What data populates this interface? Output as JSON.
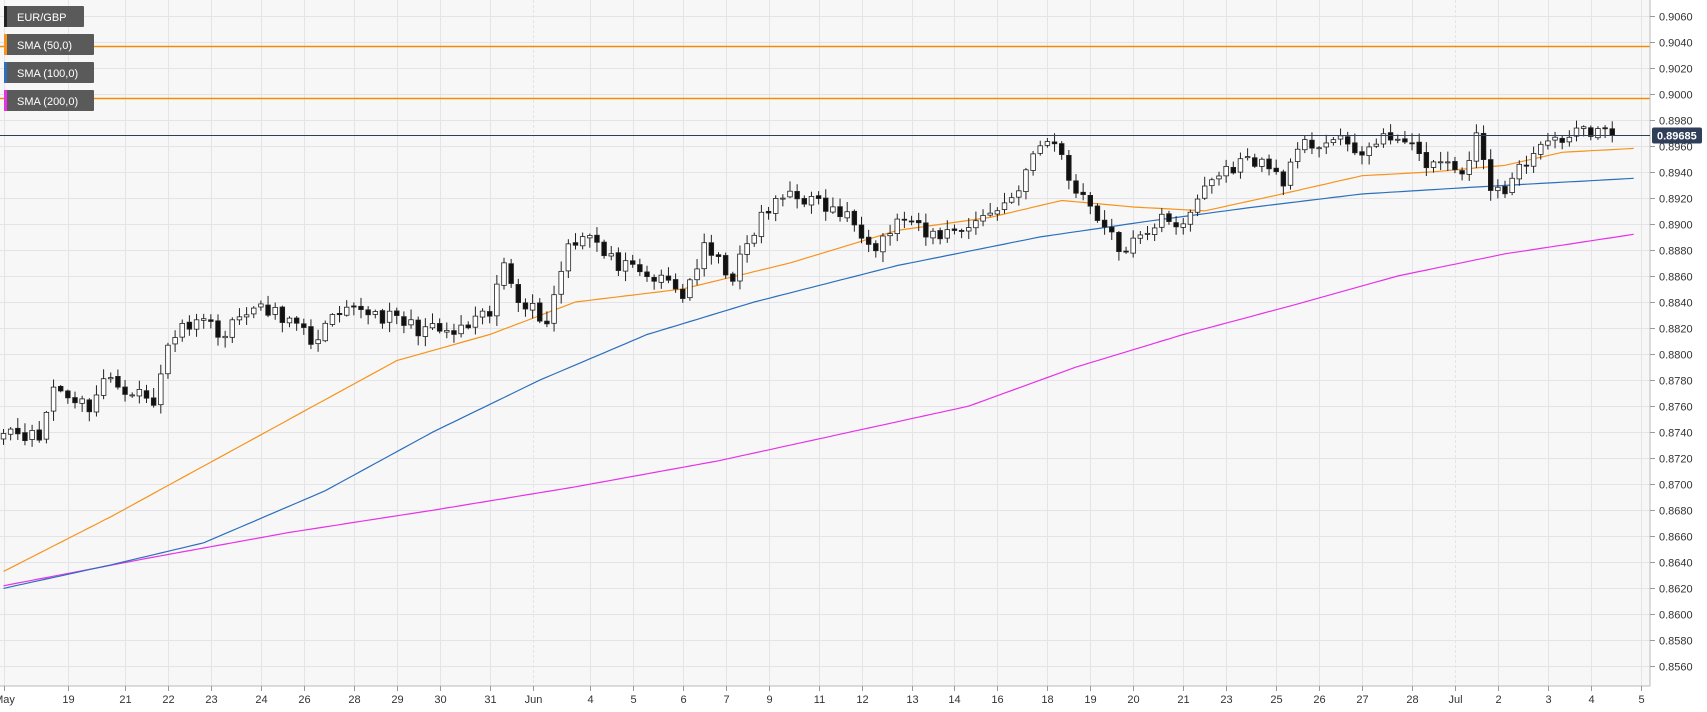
{
  "chart_data": {
    "type": "candlestick",
    "symbol": "EUR/GBP",
    "ylim": [
      0.8545,
      0.9072
    ],
    "y_ticks": [
      "0.8560",
      "0.8580",
      "0.8600",
      "0.8620",
      "0.8640",
      "0.8660",
      "0.8680",
      "0.8700",
      "0.8720",
      "0.8740",
      "0.8760",
      "0.8780",
      "0.8800",
      "0.8820",
      "0.8840",
      "0.8860",
      "0.8880",
      "0.8900",
      "0.8920",
      "0.8940",
      "0.8960",
      "0.8980",
      "0.9000",
      "0.9020",
      "0.9040",
      "0.9060"
    ],
    "x_ticks": [
      {
        "label": "May",
        "i": 0
      },
      {
        "label": "19",
        "i": 9
      },
      {
        "label": "21",
        "i": 17
      },
      {
        "label": "22",
        "i": 23
      },
      {
        "label": "23",
        "i": 29
      },
      {
        "label": "24",
        "i": 36
      },
      {
        "label": "26",
        "i": 42
      },
      {
        "label": "28",
        "i": 49
      },
      {
        "label": "29",
        "i": 55
      },
      {
        "label": "30",
        "i": 61
      },
      {
        "label": "31",
        "i": 68
      },
      {
        "label": "Jun",
        "i": 74
      },
      {
        "label": "4",
        "i": 82
      },
      {
        "label": "5",
        "i": 88
      },
      {
        "label": "6",
        "i": 95
      },
      {
        "label": "7",
        "i": 101
      },
      {
        "label": "9",
        "i": 107
      },
      {
        "label": "11",
        "i": 114
      },
      {
        "label": "12",
        "i": 120
      },
      {
        "label": "13",
        "i": 127
      },
      {
        "label": "14",
        "i": 133
      },
      {
        "label": "16",
        "i": 139
      },
      {
        "label": "18",
        "i": 146
      },
      {
        "label": "19",
        "i": 152
      },
      {
        "label": "20",
        "i": 158
      },
      {
        "label": "21",
        "i": 165
      },
      {
        "label": "23",
        "i": 171
      },
      {
        "label": "25",
        "i": 178
      },
      {
        "label": "26",
        "i": 184
      },
      {
        "label": "27",
        "i": 190
      },
      {
        "label": "28",
        "i": 197
      },
      {
        "label": "Jul",
        "i": 203
      },
      {
        "label": "2",
        "i": 209
      },
      {
        "label": "3",
        "i": 216
      },
      {
        "label": "4",
        "i": 222
      },
      {
        "label": "5",
        "i": 229
      }
    ],
    "legend": [
      {
        "label": "EUR/GBP",
        "color": "#222222"
      },
      {
        "label": "SMA (50,0)",
        "color": "#f7931a"
      },
      {
        "label": "SMA (100,0)",
        "color": "#2c6fbb"
      },
      {
        "label": "SMA (200,0)",
        "color": "#e633e6"
      }
    ],
    "current_price": {
      "label": "0.89685",
      "value": 0.89685,
      "color": "#2f3f5a"
    },
    "horizontal_levels": [
      {
        "value": 0.9037,
        "color": "#f28c00"
      },
      {
        "value": 0.8997,
        "color": "#f28c00"
      }
    ],
    "key_points": [
      {
        "i": 0,
        "c": 0.8745
      },
      {
        "i": 5,
        "c": 0.8735
      },
      {
        "i": 7,
        "c": 0.8775
      },
      {
        "i": 12,
        "c": 0.876
      },
      {
        "i": 14,
        "c": 0.878
      },
      {
        "i": 19,
        "c": 0.877
      },
      {
        "i": 21,
        "c": 0.876
      },
      {
        "i": 23,
        "c": 0.881
      },
      {
        "i": 27,
        "c": 0.883
      },
      {
        "i": 31,
        "c": 0.8815
      },
      {
        "i": 34,
        "c": 0.8835
      },
      {
        "i": 39,
        "c": 0.883
      },
      {
        "i": 43,
        "c": 0.881
      },
      {
        "i": 46,
        "c": 0.8825
      },
      {
        "i": 50,
        "c": 0.8835
      },
      {
        "i": 58,
        "c": 0.882
      },
      {
        "i": 63,
        "c": 0.8815
      },
      {
        "i": 68,
        "c": 0.883
      },
      {
        "i": 70,
        "c": 0.887
      },
      {
        "i": 72,
        "c": 0.8845
      },
      {
        "i": 76,
        "c": 0.8825
      },
      {
        "i": 79,
        "c": 0.8885
      },
      {
        "i": 82,
        "c": 0.8895
      },
      {
        "i": 84,
        "c": 0.8875
      },
      {
        "i": 89,
        "c": 0.886
      },
      {
        "i": 93,
        "c": 0.8855
      },
      {
        "i": 95,
        "c": 0.8845
      },
      {
        "i": 98,
        "c": 0.888
      },
      {
        "i": 102,
        "c": 0.886
      },
      {
        "i": 106,
        "c": 0.8905
      },
      {
        "i": 110,
        "c": 0.8925
      },
      {
        "i": 114,
        "c": 0.8915
      },
      {
        "i": 118,
        "c": 0.8905
      },
      {
        "i": 122,
        "c": 0.8885
      },
      {
        "i": 126,
        "c": 0.8905
      },
      {
        "i": 129,
        "c": 0.889
      },
      {
        "i": 133,
        "c": 0.8895
      },
      {
        "i": 137,
        "c": 0.8905
      },
      {
        "i": 141,
        "c": 0.892
      },
      {
        "i": 145,
        "c": 0.896
      },
      {
        "i": 147,
        "c": 0.8965
      },
      {
        "i": 149,
        "c": 0.8935
      },
      {
        "i": 152,
        "c": 0.8915
      },
      {
        "i": 156,
        "c": 0.888
      },
      {
        "i": 160,
        "c": 0.889
      },
      {
        "i": 162,
        "c": 0.891
      },
      {
        "i": 165,
        "c": 0.8895
      },
      {
        "i": 168,
        "c": 0.893
      },
      {
        "i": 172,
        "c": 0.8945
      },
      {
        "i": 175,
        "c": 0.895
      },
      {
        "i": 179,
        "c": 0.8935
      },
      {
        "i": 182,
        "c": 0.896
      },
      {
        "i": 186,
        "c": 0.8965
      },
      {
        "i": 189,
        "c": 0.8955
      },
      {
        "i": 192,
        "c": 0.896
      },
      {
        "i": 195,
        "c": 0.897
      },
      {
        "i": 198,
        "c": 0.895
      },
      {
        "i": 201,
        "c": 0.8945
      },
      {
        "i": 204,
        "c": 0.894
      },
      {
        "i": 206,
        "c": 0.8965
      },
      {
        "i": 208,
        "c": 0.893
      },
      {
        "i": 210,
        "c": 0.8925
      },
      {
        "i": 213,
        "c": 0.895
      },
      {
        "i": 216,
        "c": 0.896
      },
      {
        "i": 219,
        "c": 0.897
      },
      {
        "i": 222,
        "c": 0.8972
      },
      {
        "i": 225,
        "c": 0.8968
      }
    ],
    "sma_50": [
      {
        "i": 0,
        "v": 0.8633
      },
      {
        "i": 15,
        "v": 0.8675
      },
      {
        "i": 30,
        "v": 0.872
      },
      {
        "i": 45,
        "v": 0.8765
      },
      {
        "i": 55,
        "v": 0.8795
      },
      {
        "i": 68,
        "v": 0.8815
      },
      {
        "i": 80,
        "v": 0.884
      },
      {
        "i": 95,
        "v": 0.885
      },
      {
        "i": 110,
        "v": 0.887
      },
      {
        "i": 125,
        "v": 0.8895
      },
      {
        "i": 138,
        "v": 0.8905
      },
      {
        "i": 148,
        "v": 0.8918
      },
      {
        "i": 158,
        "v": 0.8913
      },
      {
        "i": 168,
        "v": 0.891
      },
      {
        "i": 178,
        "v": 0.8922
      },
      {
        "i": 190,
        "v": 0.8937
      },
      {
        "i": 200,
        "v": 0.894
      },
      {
        "i": 210,
        "v": 0.8945
      },
      {
        "i": 218,
        "v": 0.8955
      },
      {
        "i": 228,
        "v": 0.8958
      }
    ],
    "sma_100": [
      {
        "i": 0,
        "v": 0.862
      },
      {
        "i": 15,
        "v": 0.8638
      },
      {
        "i": 28,
        "v": 0.8655
      },
      {
        "i": 45,
        "v": 0.8695
      },
      {
        "i": 60,
        "v": 0.874
      },
      {
        "i": 75,
        "v": 0.878
      },
      {
        "i": 90,
        "v": 0.8815
      },
      {
        "i": 105,
        "v": 0.884
      },
      {
        "i": 125,
        "v": 0.8868
      },
      {
        "i": 145,
        "v": 0.889
      },
      {
        "i": 160,
        "v": 0.8902
      },
      {
        "i": 175,
        "v": 0.8913
      },
      {
        "i": 190,
        "v": 0.8923
      },
      {
        "i": 205,
        "v": 0.8928
      },
      {
        "i": 218,
        "v": 0.8932
      },
      {
        "i": 228,
        "v": 0.8935
      }
    ],
    "sma_200": [
      {
        "i": 0,
        "v": 0.8622
      },
      {
        "i": 20,
        "v": 0.8643
      },
      {
        "i": 40,
        "v": 0.8663
      },
      {
        "i": 60,
        "v": 0.868
      },
      {
        "i": 80,
        "v": 0.8698
      },
      {
        "i": 100,
        "v": 0.8718
      },
      {
        "i": 120,
        "v": 0.8742
      },
      {
        "i": 135,
        "v": 0.876
      },
      {
        "i": 150,
        "v": 0.879
      },
      {
        "i": 165,
        "v": 0.8815
      },
      {
        "i": 180,
        "v": 0.8837
      },
      {
        "i": 195,
        "v": 0.886
      },
      {
        "i": 210,
        "v": 0.8877
      },
      {
        "i": 228,
        "v": 0.8892
      }
    ]
  }
}
